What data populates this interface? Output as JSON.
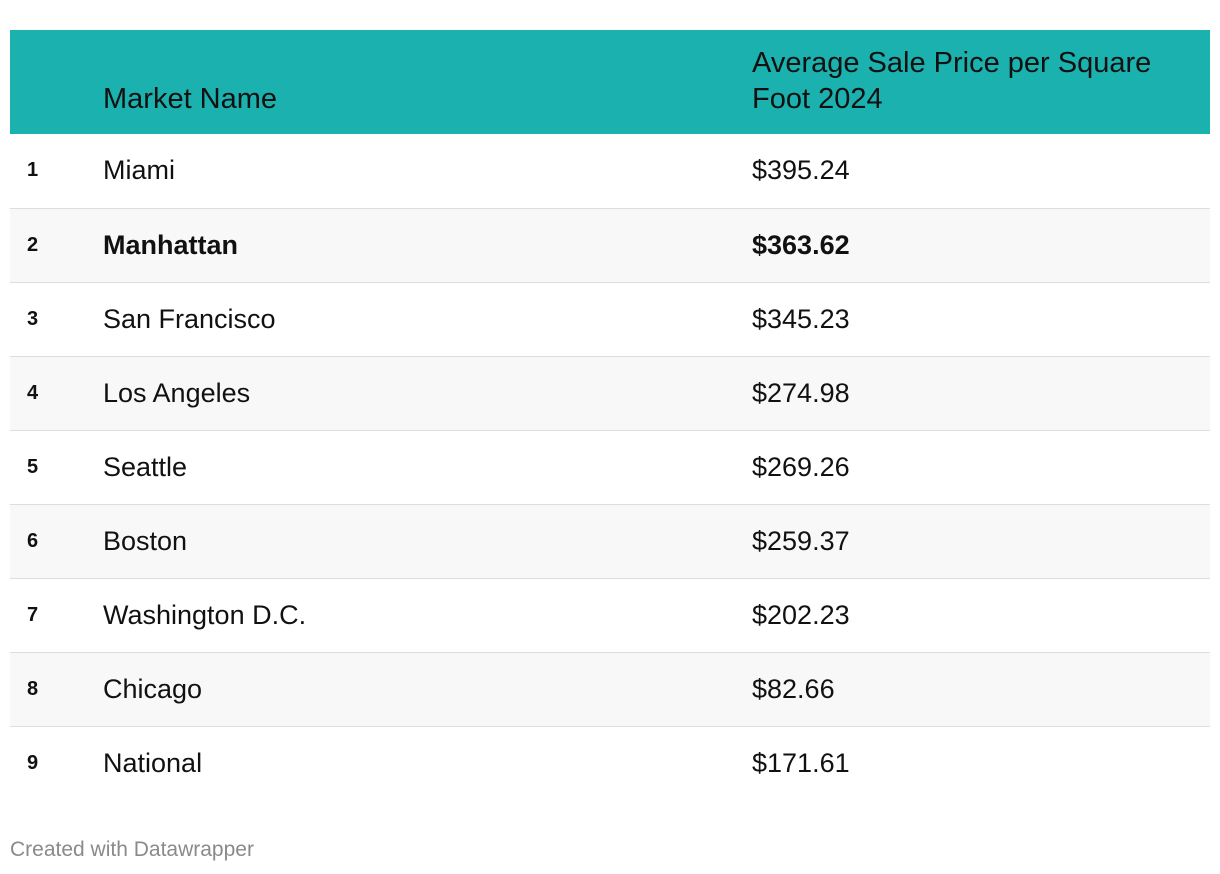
{
  "chart_data": {
    "type": "table",
    "columns": [
      "",
      "Market Name",
      "Average Sale Price per Square Foot 2024"
    ],
    "rows": [
      {
        "rank": "1",
        "market": "Miami",
        "price": "$395.24",
        "value": 395.24,
        "highlight": false
      },
      {
        "rank": "2",
        "market": "Manhattan",
        "price": "$363.62",
        "value": 363.62,
        "highlight": true
      },
      {
        "rank": "3",
        "market": "San Francisco",
        "price": "$345.23",
        "value": 345.23,
        "highlight": false
      },
      {
        "rank": "4",
        "market": "Los Angeles",
        "price": "$274.98",
        "value": 274.98,
        "highlight": false
      },
      {
        "rank": "5",
        "market": "Seattle",
        "price": "$269.26",
        "value": 269.26,
        "highlight": false
      },
      {
        "rank": "6",
        "market": "Boston",
        "price": "$259.37",
        "value": 259.37,
        "highlight": false
      },
      {
        "rank": "7",
        "market": "Washington D.C.",
        "price": "$202.23",
        "value": 202.23,
        "highlight": false
      },
      {
        "rank": "8",
        "market": "Chicago",
        "price": "$82.66",
        "value": 82.66,
        "highlight": false
      },
      {
        "rank": "9",
        "market": "National",
        "price": "$171.61",
        "value": 171.61,
        "highlight": false
      }
    ],
    "header_color": "#1bb1af",
    "stripe_color": "#f8f8f8"
  },
  "footer": {
    "credit": "Created with Datawrapper"
  }
}
